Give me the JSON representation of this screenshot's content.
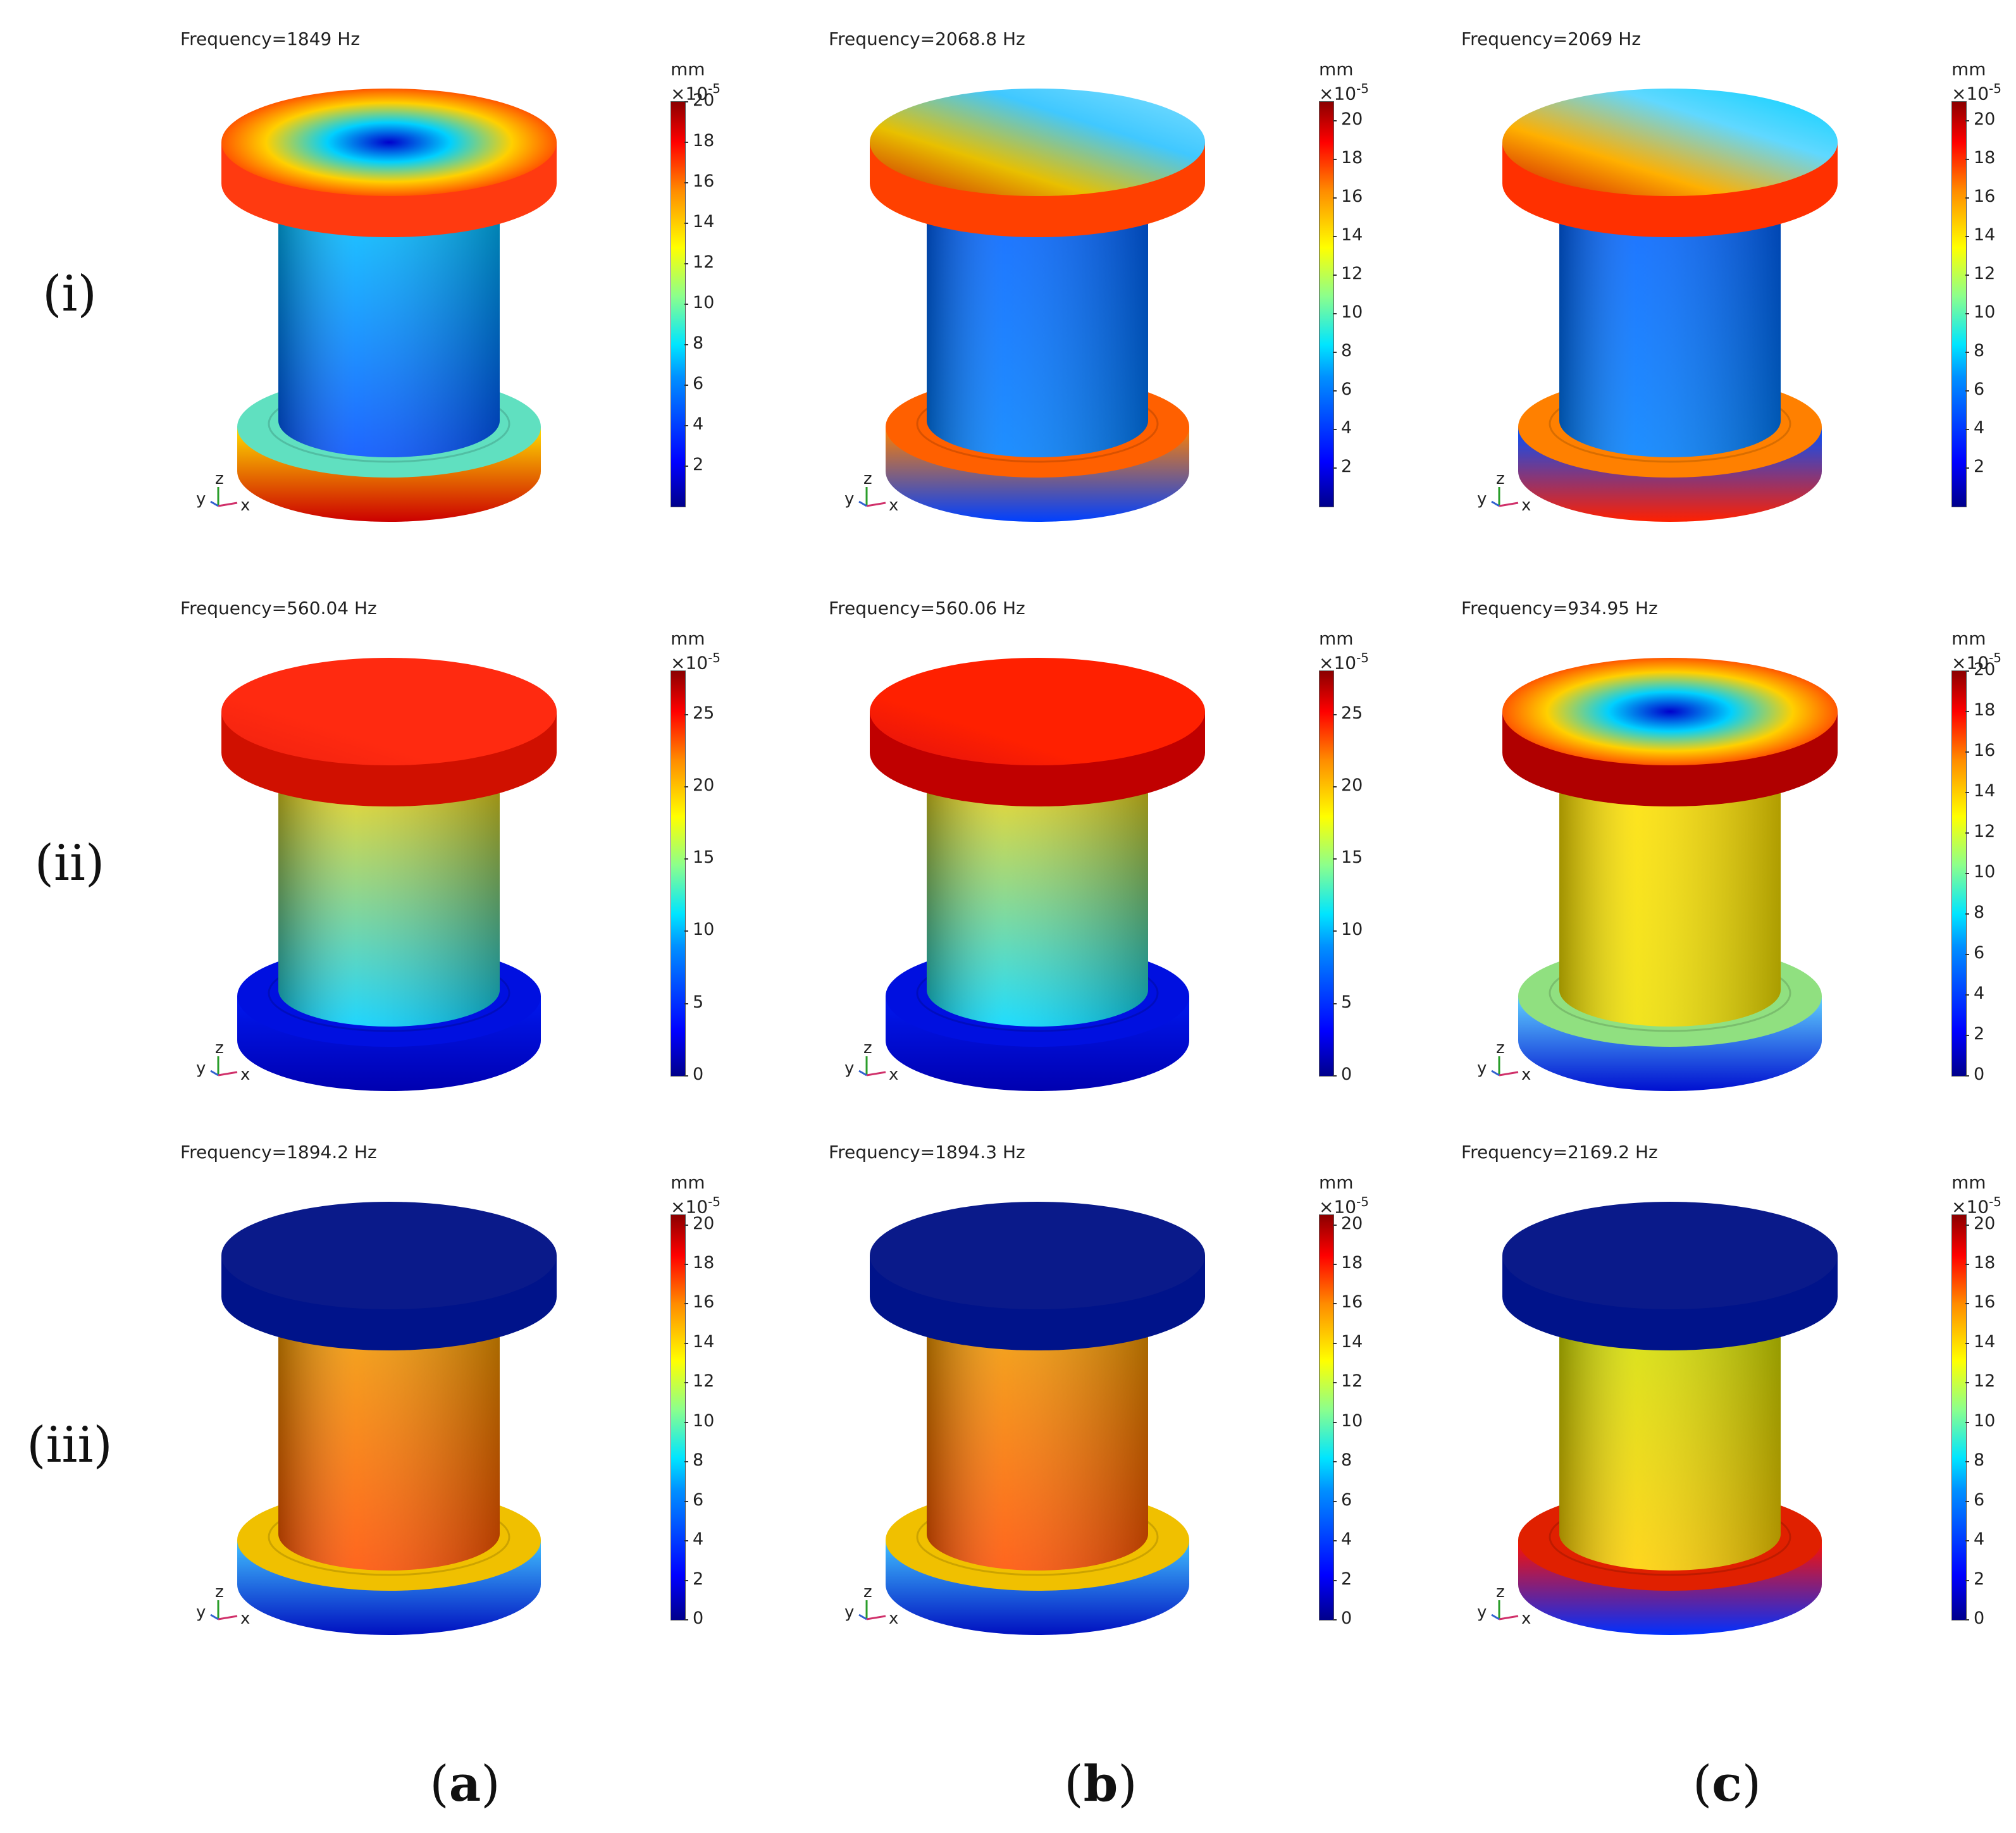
{
  "rows": [
    "(i)",
    "(ii)",
    "(iii)"
  ],
  "columns": [
    {
      "letter": "a",
      "open": "(",
      "close": ")"
    },
    {
      "letter": "b",
      "open": "(",
      "close": ")"
    },
    {
      "letter": "c",
      "open": "(",
      "close": ")"
    }
  ],
  "panels": [
    {
      "frequency": "Frequency=1849 Hz",
      "unit": "mm",
      "scale": "×10",
      "exp": "-5",
      "ticks": [
        "20",
        "18",
        "16",
        "14",
        "12",
        "10",
        "8",
        "6",
        "4",
        "2"
      ],
      "max": 20,
      "top_max": 20,
      "mode": "radial",
      "colors": {
        "cap_top": [
          "#0000cc",
          "#00d0ff",
          "#ffd000",
          "#ff2a00"
        ],
        "cap_side": "#ff3a10",
        "column": [
          "#00c8ff",
          "#0050ff"
        ],
        "flange_top": "#60e0c0",
        "flange_side": [
          "#ffdd00",
          "#cc0000"
        ]
      }
    },
    {
      "frequency": "Frequency=2068.8 Hz",
      "unit": "mm",
      "scale": "×10",
      "exp": "-5",
      "ticks": [
        "20",
        "18",
        "16",
        "14",
        "12",
        "10",
        "8",
        "6",
        "4",
        "2"
      ],
      "max": 21,
      "top_max": 21,
      "mode": "tilt",
      "colors": {
        "cap_top": [
          "#cc2000",
          "#e8c000",
          "#40c8ff",
          "#80e0ff"
        ],
        "cap_side": "#ff4000",
        "column": [
          "#0060ff",
          "#0080ff"
        ],
        "flange_top": "#ff6000",
        "flange_side": [
          "#ff8000",
          "#0040ff"
        ]
      }
    },
    {
      "frequency": "Frequency=2069 Hz",
      "unit": "mm",
      "scale": "×10",
      "exp": "-5",
      "ticks": [
        "20",
        "18",
        "16",
        "14",
        "12",
        "10",
        "8",
        "6",
        "4",
        "2"
      ],
      "max": 21,
      "top_max": 21,
      "mode": "tilt",
      "colors": {
        "cap_top": [
          "#cc1000",
          "#ffb000",
          "#60d8ff",
          "#00d0ff"
        ],
        "cap_side": "#ff3000",
        "column": [
          "#0060ff",
          "#0080ff"
        ],
        "flange_top": "#ff8000",
        "flange_side": [
          "#0050ff",
          "#ff2000"
        ]
      }
    },
    {
      "frequency": "Frequency=560.04 Hz",
      "unit": "mm",
      "scale": "×10",
      "exp": "-5",
      "ticks": [
        "25",
        "20",
        "15",
        "10",
        "5",
        "0"
      ],
      "max": 28,
      "top_max": 28,
      "mode": "flat",
      "colors": {
        "cap_top": [
          "#ee2010",
          "#ff2a10",
          "#ff2a10",
          "#ff2a10"
        ],
        "cap_side": "#d01000",
        "column": [
          "#ffd000",
          "#00d0ff"
        ],
        "flange_top": "#0010e0",
        "flange_side": [
          "#0018f0",
          "#0000b0"
        ]
      }
    },
    {
      "frequency": "Frequency=560.06 Hz",
      "unit": "mm",
      "scale": "×10",
      "exp": "-5",
      "ticks": [
        "25",
        "20",
        "15",
        "10",
        "5",
        "0"
      ],
      "max": 28,
      "top_max": 28,
      "mode": "flat",
      "colors": {
        "cap_top": [
          "#e01010",
          "#ff2000",
          "#ff2000",
          "#ff2000"
        ],
        "cap_side": "#c00000",
        "column": [
          "#ffd000",
          "#00d8ff"
        ],
        "flange_top": "#0010e0",
        "flange_side": [
          "#0018f0",
          "#0000b0"
        ]
      }
    },
    {
      "frequency": "Frequency=934.95 Hz",
      "unit": "mm",
      "scale": "×10",
      "exp": "-5",
      "ticks": [
        "20",
        "18",
        "16",
        "14",
        "12",
        "10",
        "8",
        "6",
        "4",
        "2",
        "0"
      ],
      "max": 20,
      "top_max": 20,
      "mode": "radial",
      "colors": {
        "cap_top": [
          "#0000cc",
          "#00d0ff",
          "#ffd000",
          "#ff2a00"
        ],
        "cap_side": "#b00000",
        "column": [
          "#ffe000",
          "#f0e000"
        ],
        "flange_top": "#90e080",
        "flange_side": [
          "#60d0ff",
          "#0010d0"
        ]
      }
    },
    {
      "frequency": "Frequency=1894.2 Hz",
      "unit": "mm",
      "scale": "×10",
      "exp": "-5",
      "ticks": [
        "20",
        "18",
        "16",
        "14",
        "12",
        "10",
        "8",
        "6",
        "4",
        "2",
        "0"
      ],
      "max": 20.5,
      "top_max": 20.5,
      "mode": "flat",
      "colors": {
        "cap_top": [
          "#0a1a8a",
          "#0a1a8a",
          "#0a1a8a",
          "#0a1a8a"
        ],
        "cap_side": "#00138a",
        "column": [
          "#f0a000",
          "#ff5000"
        ],
        "flange_top": "#f0c000",
        "flange_side": [
          "#40c0ff",
          "#0010c0"
        ]
      }
    },
    {
      "frequency": "Frequency=1894.3 Hz",
      "unit": "mm",
      "scale": "×10",
      "exp": "-5",
      "ticks": [
        "20",
        "18",
        "16",
        "14",
        "12",
        "10",
        "8",
        "6",
        "4",
        "2",
        "0"
      ],
      "max": 20.5,
      "top_max": 20.5,
      "mode": "flat",
      "colors": {
        "cap_top": [
          "#0a1a8a",
          "#0a1a8a",
          "#0a1a8a",
          "#0a1a8a"
        ],
        "cap_side": "#00138a",
        "column": [
          "#f0a000",
          "#ff5000"
        ],
        "flange_top": "#f0c000",
        "flange_side": [
          "#40c0ff",
          "#0010c0"
        ]
      }
    },
    {
      "frequency": "Frequency=2169.2 Hz",
      "unit": "mm",
      "scale": "×10",
      "exp": "-5",
      "ticks": [
        "20",
        "18",
        "16",
        "14",
        "12",
        "10",
        "8",
        "6",
        "4",
        "2",
        "0"
      ],
      "max": 20.5,
      "top_max": 20.5,
      "mode": "flat",
      "colors": {
        "cap_top": [
          "#0a1a8a",
          "#0a1a8a",
          "#0a1a8a",
          "#0a1a8a"
        ],
        "cap_side": "#00138a",
        "column": [
          "#d0e000",
          "#ffd000"
        ],
        "flange_top": "#e02000",
        "flange_side": [
          "#ff1000",
          "#0030ff"
        ]
      }
    }
  ],
  "axes_labels": {
    "x": "x",
    "y": "y",
    "z": "z"
  }
}
